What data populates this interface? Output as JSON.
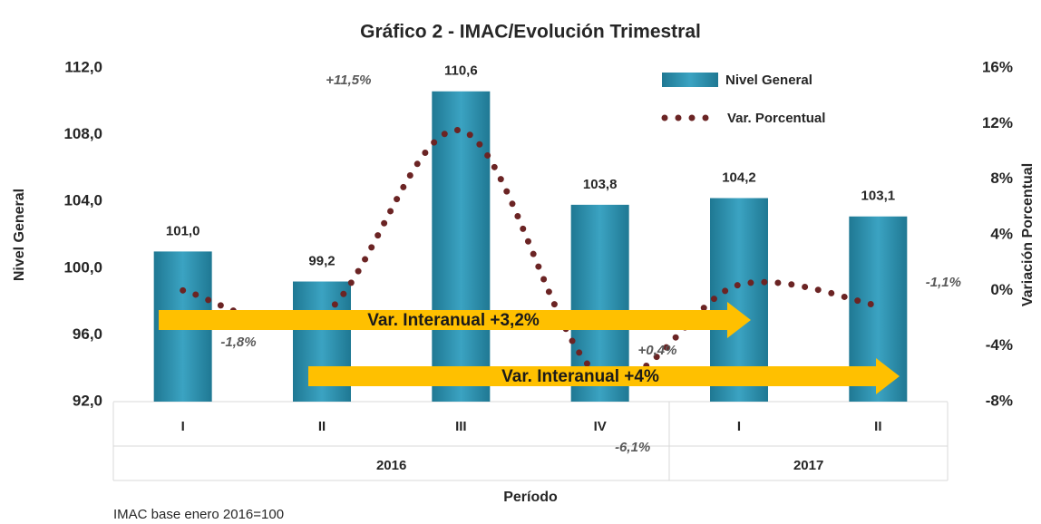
{
  "chart_data": {
    "type": "bar_line",
    "title": "Gráfico 2 - IMAC/Evolución Trimestral",
    "y_label": "Nivel General",
    "y2_label": "Variación Porcentual",
    "x_label": "Período",
    "footnote": "IMAC base enero 2016=100",
    "categories": [
      "I",
      "II",
      "III",
      "IV",
      "I",
      "II"
    ],
    "groups": [
      {
        "label": "2016",
        "span": 4
      },
      {
        "label": "2017",
        "span": 2
      }
    ],
    "series": [
      {
        "name": "Nivel General",
        "color": "#2e8aa5",
        "values": [
          101.0,
          99.2,
          110.6,
          103.8,
          104.2,
          103.1
        ],
        "value_labels": [
          "101,0",
          "99,2",
          "110,6",
          "103,8",
          "104,2",
          "103,1"
        ]
      },
      {
        "name": "Var. Porcentual",
        "color": "#6b2424",
        "axis": "y2",
        "values": [
          0,
          -1.8,
          11.5,
          -6.1,
          0.4,
          -1.1
        ],
        "value_labels": [
          null,
          "-1,8%",
          "+11,5%",
          "-6,1%",
          "+0,4%",
          "-1,1%"
        ]
      }
    ],
    "ylim": [
      92,
      112
    ],
    "yticks": [
      {
        "value": 92,
        "label": "92,0"
      },
      {
        "value": 96,
        "label": "96,0"
      },
      {
        "value": 100,
        "label": "100,0"
      },
      {
        "value": 104,
        "label": "104,0"
      },
      {
        "value": 108,
        "label": "108,0"
      },
      {
        "value": 112,
        "label": "112,0"
      }
    ],
    "y2lim": [
      -8,
      16
    ],
    "y2ticks": [
      {
        "value": -8,
        "label": "-8%"
      },
      {
        "value": -4,
        "label": "-4%"
      },
      {
        "value": 0,
        "label": "0%"
      },
      {
        "value": 4,
        "label": "4%"
      },
      {
        "value": 8,
        "label": "8%"
      },
      {
        "value": 12,
        "label": "12%"
      },
      {
        "value": 16,
        "label": "16%"
      }
    ],
    "annotations": [
      "Var. Interanual +3,2%",
      "Var. Interanual +4%"
    ],
    "legend": "upper right"
  }
}
